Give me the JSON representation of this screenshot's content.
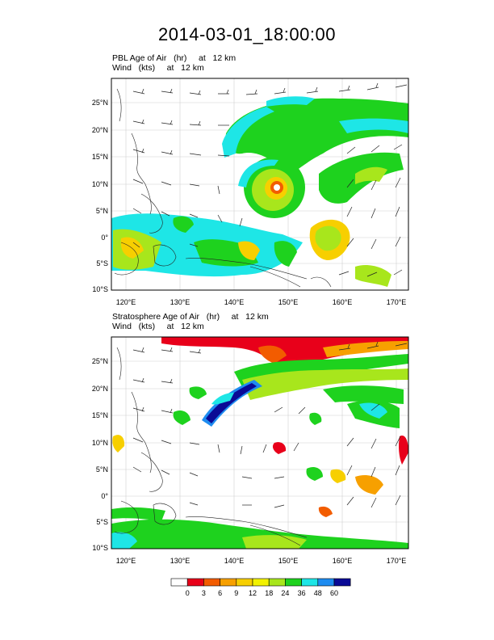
{
  "title": "2014-03-01_18:00:00",
  "panels": [
    {
      "label_line1": "PBL Age of Air   (hr)     at   12 km",
      "label_line2": "Wind   (kts)     at   12 km",
      "lon_ticks": [
        "120°E",
        "130°E",
        "140°E",
        "150°E",
        "160°E",
        "170°E"
      ],
      "lat_ticks": [
        "25°N",
        "20°N",
        "15°N",
        "10°N",
        "5°N",
        "0°",
        "5°S",
        "10°S"
      ]
    },
    {
      "label_line1": "Stratosphere Age of Air   (hr)     at   12 km",
      "label_line2": "Wind   (kts)     at   12 km",
      "lon_ticks": [
        "120°E",
        "130°E",
        "140°E",
        "150°E",
        "160°E",
        "170°E"
      ],
      "lat_ticks": [
        "25°N",
        "20°N",
        "15°N",
        "10°N",
        "5°N",
        "0°",
        "5°S",
        "10°S"
      ]
    }
  ],
  "colorbar": {
    "labels": [
      "0",
      "3",
      "6",
      "9",
      "12",
      "18",
      "24",
      "36",
      "48",
      "60"
    ],
    "colors": [
      "#ffffff",
      "#e8001a",
      "#f25c00",
      "#f7a000",
      "#f7cf00",
      "#f2f200",
      "#a8e61c",
      "#1ed21e",
      "#1ee6e6",
      "#1e8cf0",
      "#0a0a96"
    ]
  }
}
